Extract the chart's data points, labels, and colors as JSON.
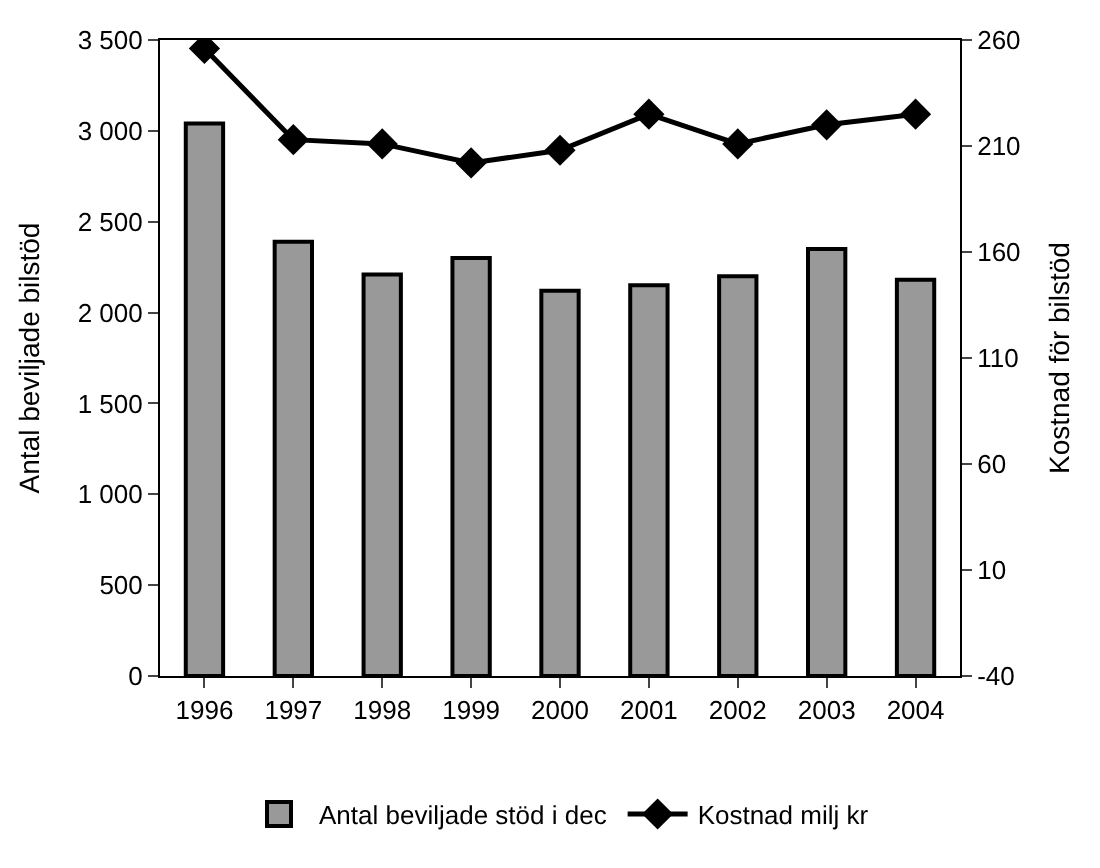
{
  "chart_data": {
    "type": "bar",
    "categories": [
      "1996",
      "1997",
      "1998",
      "1999",
      "2000",
      "2001",
      "2002",
      "2003",
      "2004"
    ],
    "series": [
      {
        "name": "Antal beviljade stöd i dec",
        "color": "#999999",
        "values": [
          3040,
          2390,
          2210,
          2300,
          2120,
          2150,
          2200,
          2350,
          2180
        ]
      },
      {
        "name": "Kostnad milj kr",
        "type": "line",
        "axis": "y2",
        "color": "#000000",
        "marker": "diamond",
        "values": [
          256,
          213,
          211,
          202,
          208,
          225,
          211,
          220,
          225
        ]
      }
    ],
    "ylabel": "Antal beviljade bilstöd",
    "y2label": "Kostnad för bilstöd",
    "ylim": [
      0,
      3500
    ],
    "yticks": [
      0,
      {
        "value": 500,
        "label": "500"
      },
      {
        "value": 1000,
        "label": "1 000"
      },
      {
        "value": 1500,
        "label": "1 500"
      },
      {
        "value": 2000,
        "label": "2 000"
      },
      {
        "value": 2500,
        "label": "2 500"
      },
      {
        "value": 3000,
        "label": "3 000"
      },
      {
        "value": 3500,
        "label": "3 500"
      }
    ],
    "y2lim": [
      -40,
      260
    ],
    "y2ticks": [
      -40,
      10,
      60,
      110,
      160,
      210,
      260
    ],
    "legend": "bottom"
  }
}
